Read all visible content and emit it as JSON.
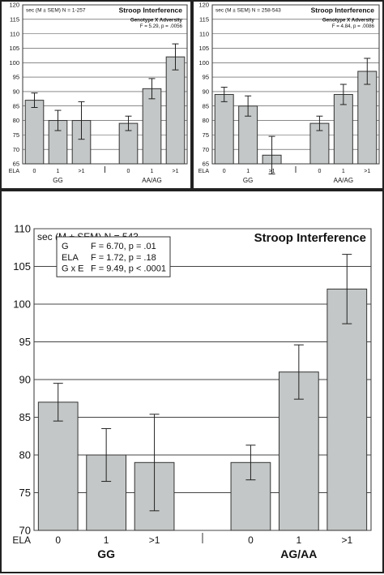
{
  "chart_data": [
    {
      "type": "bar",
      "title": "Stroop Interference",
      "subtitle": "sec (M ± SEM) N = 1-257",
      "annotation": [
        "Genotype X Adversity",
        "F = 5.29, p = .0056"
      ],
      "ylim": [
        65,
        120
      ],
      "yticks": [
        65,
        70,
        75,
        80,
        85,
        90,
        95,
        100,
        105,
        110,
        115,
        120
      ],
      "x_prefix": "ELA",
      "groups": [
        {
          "label": "GG",
          "bars": [
            {
              "category": "0",
              "value": 87,
              "err": 2.5
            },
            {
              "category": "1",
              "value": 80,
              "err": 3.5
            },
            {
              "category": ">1",
              "value": 80,
              "err": 6.5
            }
          ]
        },
        {
          "label": "AA/AG",
          "bars": [
            {
              "category": "0",
              "value": 79,
              "err": 2.5
            },
            {
              "category": "1",
              "value": 91,
              "err": 3.5
            },
            {
              "category": ">1",
              "value": 102,
              "err": 4.5
            }
          ]
        }
      ],
      "grid": true
    },
    {
      "type": "bar",
      "title": "Stroop Interference",
      "subtitle": "sec (M ± SEM) N = 258-543",
      "annotation": [
        "Genotype X Adversity",
        "F = 4.84, p = .0086"
      ],
      "ylim": [
        65,
        120
      ],
      "yticks": [
        65,
        70,
        75,
        80,
        85,
        90,
        95,
        100,
        105,
        110,
        115,
        120
      ],
      "x_prefix": "ELA",
      "groups": [
        {
          "label": "GG",
          "bars": [
            {
              "category": "0",
              "value": 89,
              "err": 2.5
            },
            {
              "category": "1",
              "value": 85,
              "err": 3.5
            },
            {
              "category": ">1",
              "value": 68,
              "err": 6.5
            }
          ]
        },
        {
          "label": "AA/AG",
          "bars": [
            {
              "category": "0",
              "value": 79,
              "err": 2.5
            },
            {
              "category": "1",
              "value": 89,
              "err": 3.5
            },
            {
              "category": ">1",
              "value": 97,
              "err": 4.5
            }
          ]
        }
      ],
      "grid": true
    },
    {
      "type": "bar",
      "title": "Stroop Interference",
      "subtitle": "sec (M ± SEM) N = 543",
      "annotation": [
        "G      F = 6.70, p = .01",
        "ELA    F = 1.72, p = .18",
        "G x E  F = 9.49, p < .0001"
      ],
      "ylim": [
        70,
        110
      ],
      "yticks": [
        70,
        75,
        80,
        85,
        90,
        95,
        100,
        105,
        110
      ],
      "x_prefix": "ELA",
      "groups": [
        {
          "label": "GG",
          "bars": [
            {
              "category": "0",
              "value": 87,
              "err": 2.5
            },
            {
              "category": "1",
              "value": 80,
              "err": 3.5
            },
            {
              "category": ">1",
              "value": 79,
              "err": 6.4
            }
          ]
        },
        {
          "label": "AG/AA",
          "bars": [
            {
              "category": "0",
              "value": 79,
              "err": 2.3
            },
            {
              "category": "1",
              "value": 91,
              "err": 3.6
            },
            {
              "category": ">1",
              "value": 102,
              "err": 4.6
            }
          ]
        }
      ],
      "grid": true
    }
  ]
}
